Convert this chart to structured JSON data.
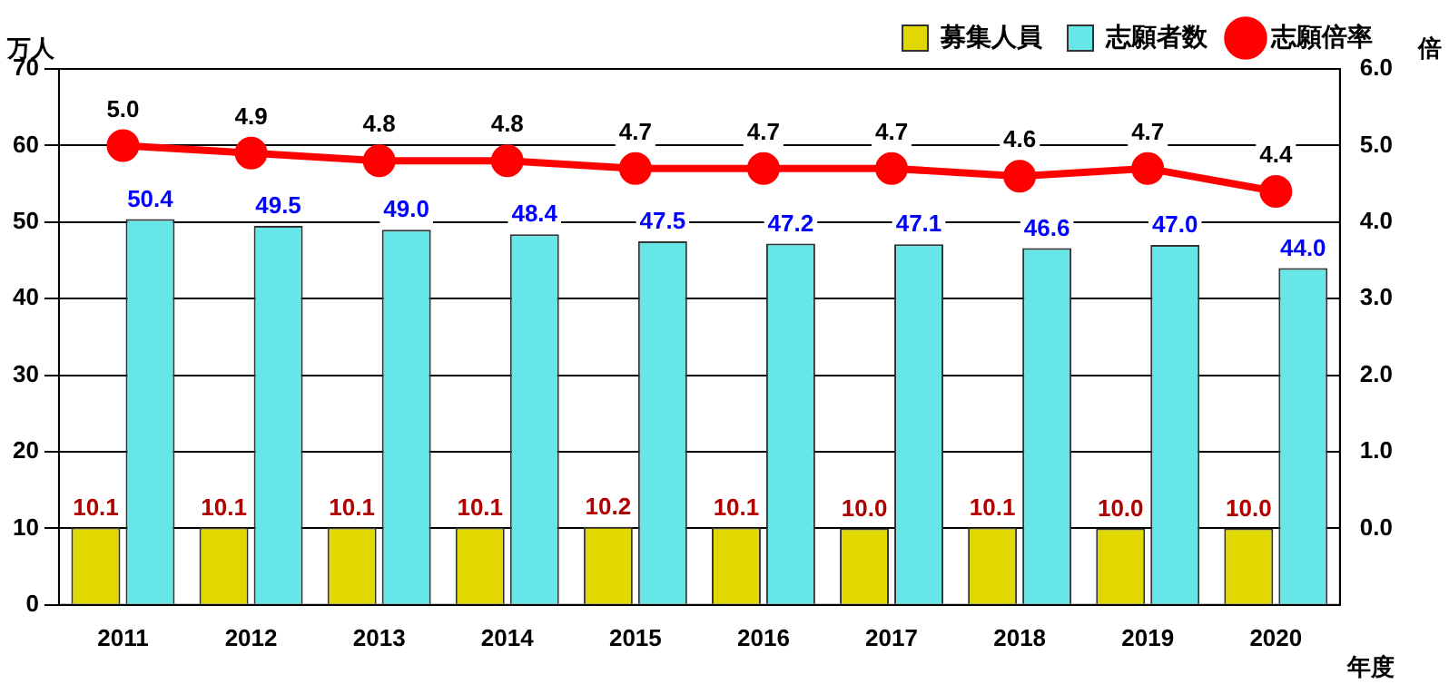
{
  "chart_data": {
    "type": "bar",
    "categories": [
      "2011",
      "2012",
      "2013",
      "2014",
      "2015",
      "2016",
      "2017",
      "2018",
      "2019",
      "2020"
    ],
    "ylabel": "万人",
    "y2label": "倍",
    "xlabel": "年度",
    "series": [
      {
        "name": "募集人員",
        "color": "#e0d800",
        "values": [
          10.1,
          10.1,
          10.1,
          10.1,
          10.2,
          10.1,
          10.0,
          10.1,
          10.0,
          10.0
        ],
        "value_labels": [
          "10.1",
          "10.1",
          "10.1",
          "10.1",
          "10.2",
          "10.1",
          "10.0",
          "10.1",
          "10.0",
          "10.0"
        ]
      },
      {
        "name": "志願者数",
        "color": "#66e6e6",
        "values": [
          50.4,
          49.5,
          49.0,
          48.4,
          47.5,
          47.2,
          47.1,
          46.6,
          47.0,
          44.0
        ],
        "value_labels": [
          "50.4",
          "49.5",
          "49.0",
          "48.4",
          "47.5",
          "47.2",
          "47.1",
          "46.6",
          "47.0",
          "44.0"
        ]
      },
      {
        "name": "志願倍率",
        "type": "line",
        "axis": "y2",
        "color": "#ff0000",
        "marker": "circle",
        "values": [
          5.0,
          4.9,
          4.8,
          4.8,
          4.7,
          4.7,
          4.7,
          4.6,
          4.7,
          4.4
        ],
        "value_labels": [
          "5.0",
          "4.9",
          "4.8",
          "4.8",
          "4.7",
          "4.7",
          "4.7",
          "4.6",
          "4.7",
          "4.4"
        ]
      }
    ],
    "ylim": [
      0,
      70
    ],
    "yticks": [
      0,
      10,
      20,
      30,
      40,
      50,
      60,
      70
    ],
    "y2lim": [
      -1,
      6
    ],
    "y2ticks": [
      {
        "value": 0,
        "label": "0.0"
      },
      {
        "value": 1,
        "label": "1.0"
      },
      {
        "value": 2,
        "label": "2.0"
      },
      {
        "value": 3,
        "label": "3.0"
      },
      {
        "value": 4,
        "label": "4.0"
      },
      {
        "value": 5,
        "label": "5.0"
      },
      {
        "value": 6,
        "label": "6.0"
      }
    ],
    "grid": "y",
    "legend": "top right"
  }
}
